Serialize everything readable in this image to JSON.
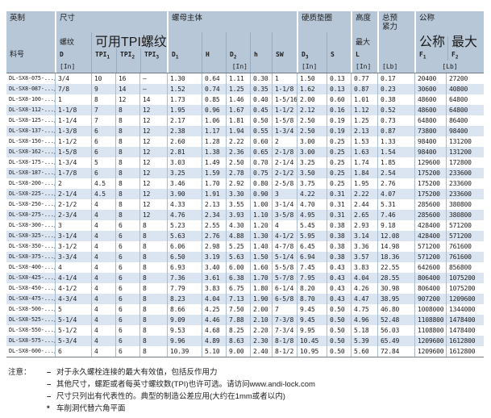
{
  "table": {
    "header": {
      "group_imperial": "英制",
      "group_size": "尺寸",
      "group_nut_body": "螺母主体",
      "group_washer": "硬质垫圈",
      "group_height": "高度",
      "group_preload": "总预紧力",
      "group_nominal": "公称",
      "part_no": "料号",
      "thread_label": "螺纹",
      "thread_symbol": "D",
      "unit_in": "[In]",
      "unit_lb": "[Lb]",
      "tpi_group": "可用TPI螺纹",
      "tpi_base": "TPI",
      "tpi_subs": [
        "1",
        "2",
        "3"
      ],
      "d1": {
        "base": "D",
        "sub": "1"
      },
      "h_upper": "H",
      "d2": {
        "base": "D",
        "sub": "2"
      },
      "h_lower": "h",
      "sw": "SW",
      "d3": {
        "base": "D",
        "sub": "3"
      },
      "s": "S",
      "max_label": "最大",
      "l_symbol": "L",
      "nominal_label": "公称",
      "f1": {
        "base": "F",
        "sub": "1"
      },
      "max_label2": "最大",
      "f2": {
        "base": "F",
        "sub": "2"
      }
    },
    "col_names": [
      "part-number",
      "thread-diameter",
      "tpi-1",
      "tpi-2",
      "tpi-3",
      "d1-diameter",
      "h-height",
      "d2-diameter",
      "h-washer-height",
      "sw-wrench-size",
      "d3-diameter",
      "s-thickness",
      "l-max-height",
      "total-preload",
      "f1-nominal",
      "f2-max"
    ],
    "rows": [
      [
        "DL-SX8-075-.../W",
        "3/4",
        "10",
        "16",
        "–",
        "1.30",
        "0.64",
        "1.11",
        "0.30",
        "1",
        "1.50",
        "0.13",
        "0.77",
        "0.17",
        "20400",
        "27200"
      ],
      [
        "DL-SX8-087-.../W",
        "7/8",
        "9",
        "14",
        "–",
        "1.52",
        "0.74",
        "1.25",
        "0.35",
        "1-1/8",
        "1.62",
        "0.13",
        "0.87",
        "0.23",
        "30600",
        "40800"
      ],
      [
        "DL-SX8-100-.../W",
        "1",
        "8",
        "12",
        "14",
        "1.73",
        "0.85",
        "1.46",
        "0.40",
        "1-5/16",
        "2.00",
        "0.60",
        "1.01",
        "0.38",
        "48600",
        "64800"
      ],
      [
        "DL-SX8-112-.../W",
        "1-1/8",
        "7",
        "8",
        "12",
        "1.95",
        "0.96",
        "1.67",
        "0.45",
        "1-1/2",
        "2.12",
        "0.16",
        "1.12",
        "0.52",
        "48600",
        "64800"
      ],
      [
        "DL-SX8-125-.../W",
        "1-1/4",
        "7",
        "8",
        "12",
        "2.17",
        "1.06",
        "1.81",
        "0.50",
        "1-5/8",
        "2.50",
        "0.19",
        "1.25",
        "0.73",
        "64800",
        "86400"
      ],
      [
        "DL-SX8-137-.../W",
        "1-3/8",
        "6",
        "8",
        "12",
        "2.38",
        "1.17",
        "1.94",
        "0.55",
        "1-3/4",
        "2.50",
        "0.19",
        "2.13",
        "0.87",
        "73800",
        "98400"
      ],
      [
        "DL-SX8-150-.../W",
        "1-1/2",
        "6",
        "8",
        "12",
        "2.60",
        "1.28",
        "2.22",
        "0.60",
        "2",
        "3.00",
        "0.25",
        "1.53",
        "1.33",
        "98400",
        "131200"
      ],
      [
        "DL-SX8-162-.../W",
        "1-5/8",
        "6",
        "8",
        "12",
        "2.81",
        "1.38",
        "2.36",
        "0.65",
        "2-1/8",
        "3.00",
        "0.25",
        "1.63",
        "1.54",
        "98400",
        "131200"
      ],
      [
        "DL-SX8-175-.../W",
        "1-3/4",
        "5",
        "8",
        "12",
        "3.03",
        "1.49",
        "2.50",
        "0.70",
        "2-1/4",
        "3.25",
        "0.25",
        "1.74",
        "1.85",
        "129600",
        "172800"
      ],
      [
        "DL-SX8-187-.../W",
        "1-7/8",
        "6",
        "8",
        "12",
        "3.25",
        "1.59",
        "2.78",
        "0.75",
        "2-1/2",
        "3.50",
        "0.25",
        "1.84",
        "2.54",
        "175200",
        "233600"
      ],
      [
        "DL-SX8-200-.../W",
        "2",
        "4.5",
        "8",
        "12",
        "3.46",
        "1.70",
        "2.92",
        "0.80",
        "2-5/8",
        "3.75",
        "0.25",
        "1.95",
        "2.76",
        "175200",
        "233600"
      ],
      [
        "DL-SX8-225-.../W",
        "2-1/4",
        "4.5",
        "8",
        "12",
        "3.90",
        "1.91",
        "3.30",
        "0.90",
        "3",
        "4.22",
        "0.31",
        "2.22",
        "4.07",
        "175200",
        "233600"
      ],
      [
        "DL-SX8-250-.../W",
        "2-1/2",
        "4",
        "8",
        "12",
        "4.33",
        "2.13",
        "3.55",
        "1.00",
        "3-1/4",
        "4.70",
        "0.31",
        "2.44",
        "5.31",
        "285600",
        "380800"
      ],
      [
        "DL-SX8-275-.../W",
        "2-3/4",
        "4",
        "8",
        "12",
        "4.76",
        "2.34",
        "3.93",
        "1.10",
        "3-5/8",
        "4.95",
        "0.31",
        "2.65",
        "7.46",
        "285600",
        "380800"
      ],
      [
        "DL-SX8-300-.../W",
        "3",
        "4",
        "6",
        "8",
        "5.23",
        "2.55",
        "4.30",
        "1.20",
        "4",
        "5.45",
        "0.38",
        "2.93",
        "9.18",
        "428400",
        "571200"
      ],
      [
        "DL-SX8-325-.../W",
        "3-1/4",
        "4",
        "6",
        "8",
        "5.63",
        "2.76",
        "4.88",
        "1.30",
        "4-1/2",
        "5.95",
        "0.38",
        "3.14",
        "12.08",
        "428400",
        "571200"
      ],
      [
        "DL-SX8-350-.../W",
        "3-1/2",
        "4",
        "6",
        "8",
        "6.06",
        "2.98",
        "5.25",
        "1.40",
        "4-7/8",
        "6.45",
        "0.38",
        "3.36",
        "14.98",
        "571200",
        "761600"
      ],
      [
        "DL-SX8-375-.../W",
        "3-3/4",
        "4",
        "6",
        "8",
        "6.50",
        "3.19",
        "5.63",
        "1.50",
        "5-1/4",
        "6.94",
        "0.38",
        "3.57",
        "18.36",
        "571200",
        "761600"
      ],
      [
        "DL-SX8-400-.../W",
        "4",
        "4",
        "6",
        "8",
        "6.93",
        "3.40",
        "6.00",
        "1.60",
        "5-5/8",
        "7.45",
        "0.43",
        "3.83",
        "22.55",
        "642600",
        "856800"
      ],
      [
        "DL-SX8-425-.../W",
        "4-1/4",
        "4",
        "6",
        "8",
        "7.36",
        "3.61",
        "6.38",
        "1.70",
        "5-7/8",
        "7.95",
        "0.43",
        "4.04",
        "28.55",
        "806400",
        "1075200"
      ],
      [
        "DL-SX8-450-.../W",
        "4-1/2",
        "4",
        "6",
        "8",
        "7.79",
        "3.83",
        "6.75",
        "1.80",
        "6-1/4",
        "8.20",
        "0.43",
        "4.26",
        "30.98",
        "806400",
        "1075200"
      ],
      [
        "DL-SX8-475-.../W",
        "4-3/4",
        "4",
        "6",
        "8",
        "8.23",
        "4.04",
        "7.13",
        "1.90",
        "6-5/8",
        "8.70",
        "0.43",
        "4.47",
        "38.95",
        "907200",
        "1209600"
      ],
      [
        "DL-SX8-500-.../W",
        "5",
        "4",
        "6",
        "8",
        "8.66",
        "4.25",
        "7.50",
        "2.00",
        "7",
        "9.45",
        "0.50",
        "4.75",
        "46.80",
        "1008000",
        "1344000"
      ],
      [
        "DL-SX8-525-.../W",
        "5-1/4",
        "4",
        "6",
        "8",
        "9.09",
        "4.46",
        "7.88",
        "2.10",
        "7-3/8",
        "9.45",
        "0.50",
        "4.96",
        "52.48",
        "1108800",
        "1478400"
      ],
      [
        "DL-SX8-550-.../W",
        "5-1/2",
        "4",
        "6",
        "8",
        "9.53",
        "4.68",
        "8.25",
        "2.20",
        "7-3/4",
        "9.95",
        "0.50",
        "5.18",
        "56.03",
        "1108800",
        "1478400"
      ],
      [
        "DL-SX8-575-.../W",
        "5-3/4",
        "4",
        "6",
        "8",
        "9.96",
        "4.89",
        "8.63",
        "2.30",
        "8-1/8",
        "10.45",
        "0.50",
        "5.39",
        "65.49",
        "1209600",
        "1612800"
      ],
      [
        "DL-SX8-600-.../W",
        "6",
        "4",
        "6",
        "8",
        "10.39",
        "5.10",
        "9.00",
        "2.40",
        "8-1/2",
        "10.95",
        "0.50",
        "5.60",
        "72.84",
        "1209600",
        "1612800"
      ]
    ]
  },
  "notes": {
    "label": "注意：",
    "items": [
      {
        "bullet": "–",
        "text": "对于永久螺栓连接的最大有效值，包括反作用力"
      },
      {
        "bullet": "–",
        "text": "其他尺寸，螺距或者每英寸螺纹数(TPI)也许可选。请访问www.andi-lock.com"
      },
      {
        "bullet": "–",
        "text": "尺寸只列出有代表性的。典型的制造公差应用(大约在1mm或者以内)"
      },
      {
        "bullet": "*",
        "text": "车削洞代替六角平面"
      }
    ]
  }
}
